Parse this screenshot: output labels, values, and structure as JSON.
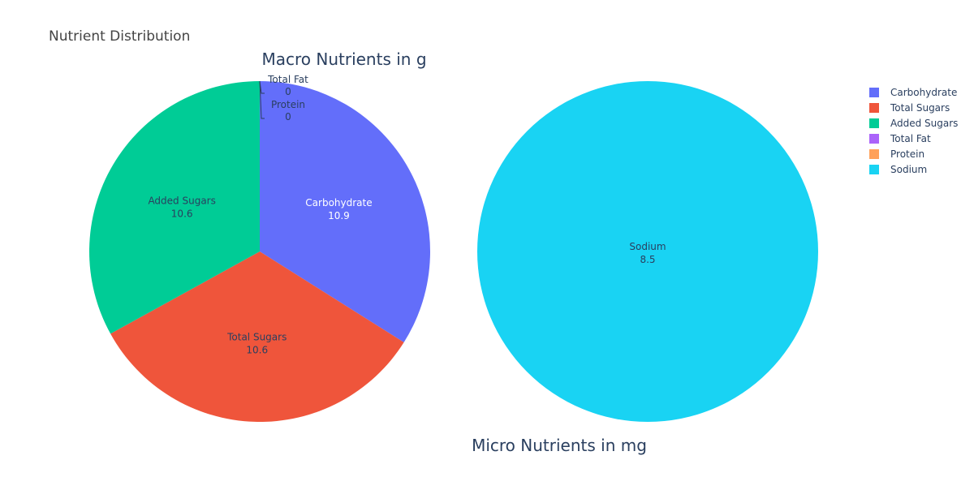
{
  "figure_title": "Nutrient Distribution",
  "chart_data": [
    {
      "type": "pie",
      "title": "Macro Nutrients in g",
      "slices": [
        {
          "label": "Carbohydrate",
          "value": 10.9,
          "display": "10.9",
          "color": "#636efa"
        },
        {
          "label": "Total Sugars",
          "value": 10.6,
          "display": "10.6",
          "color": "#ef553b"
        },
        {
          "label": "Added Sugars",
          "value": 10.6,
          "display": "10.6",
          "color": "#00cc96"
        },
        {
          "label": "Total Fat",
          "value": 0,
          "display": "0",
          "color": "#ab63fa"
        },
        {
          "label": "Protein",
          "value": 0,
          "display": "0",
          "color": "#ffa15a"
        }
      ]
    },
    {
      "type": "pie",
      "title": "Micro Nutrients in mg",
      "slices": [
        {
          "label": "Sodium",
          "value": 8.5,
          "display": "8.5",
          "color": "#19d3f3"
        }
      ]
    }
  ],
  "legend": {
    "placement": "top-right",
    "items": [
      {
        "label": "Carbohydrate",
        "color": "#636efa"
      },
      {
        "label": "Total Sugars",
        "color": "#ef553b"
      },
      {
        "label": "Added Sugars",
        "color": "#00cc96"
      },
      {
        "label": "Total Fat",
        "color": "#ab63fa"
      },
      {
        "label": "Protein",
        "color": "#ffa15a"
      },
      {
        "label": "Sodium",
        "color": "#19d3f3"
      }
    ]
  }
}
